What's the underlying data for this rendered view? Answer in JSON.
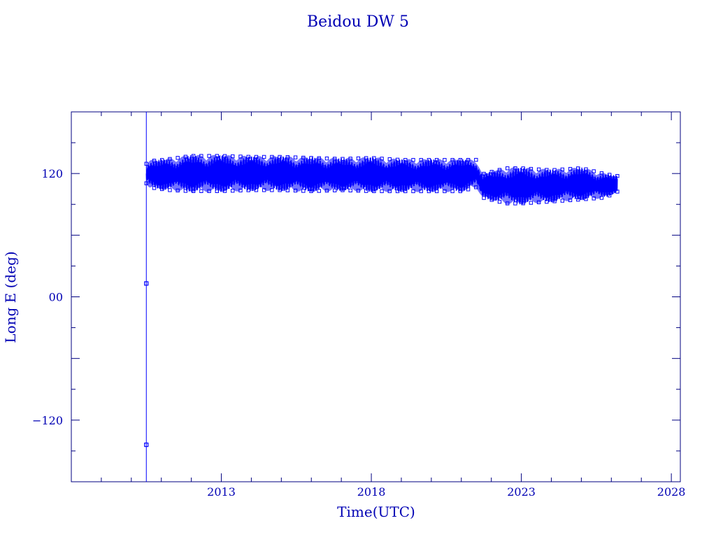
{
  "chart_data": {
    "type": "line",
    "title": "Beidou DW 5",
    "xlabel": "Time(UTC)",
    "ylabel": "Long E (deg)",
    "xlim": [
      2008.0,
      2028.3
    ],
    "ylim": [
      -180,
      180
    ],
    "xticks": [
      2013,
      2018,
      2023,
      2028
    ],
    "xtick_labels": [
      "2013",
      "2018",
      "2023",
      "2028"
    ],
    "yticks": [
      120,
      0,
      -120
    ],
    "ytick_labels": [
      "120",
      "00",
      "−120"
    ],
    "grid": false,
    "series": [
      {
        "marker": "square",
        "x": [
          2010.5,
          2010.5,
          2010.5,
          2010.6,
          2010.8,
          2011.3,
          2012.0,
          2013.0,
          2014.0,
          2015.0,
          2016.0,
          2017.0,
          2018.0,
          2019.0,
          2020.0,
          2021.0,
          2021.5,
          2021.7,
          2022.5,
          2023.0,
          2024.0,
          2025.0,
          2025.8,
          2026.2
        ],
        "y": [
          -144,
          13,
          120,
          120,
          119,
          119,
          120,
          120,
          120,
          120,
          119,
          119,
          119,
          118,
          118,
          118,
          120,
          108,
          108,
          108,
          108,
          110,
          108,
          110
        ],
        "band": [
          0,
          0,
          10,
          14,
          14,
          16,
          18,
          18,
          17,
          17,
          17,
          16,
          17,
          16,
          16,
          16,
          14,
          12,
          18,
          18,
          16,
          16,
          12,
          8
        ]
      }
    ],
    "colors": {
      "plot": "#0000ff",
      "frame": "#000080",
      "text": "#0000b4"
    }
  }
}
